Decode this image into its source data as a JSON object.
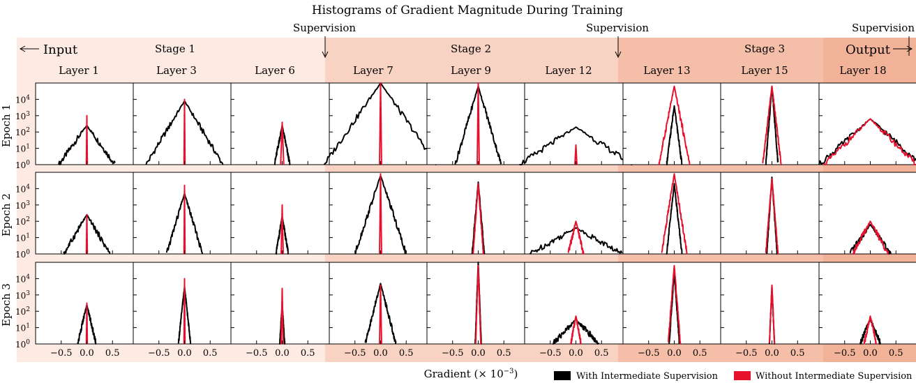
{
  "title": "Histograms of Gradient Magnitude During Training",
  "colors": {
    "stage1_bg": "#fdebe3",
    "stage2_bg": "#f8d2c2",
    "stage3_bg": "#f5bea8",
    "with_line": "#000000",
    "without_line": "#e8112d"
  },
  "labels": {
    "input": "Input",
    "output": "Output",
    "supervision": "Supervision",
    "xlabel": "Gradient (× 10",
    "xlabel_exp": "−3",
    "xlabel_close": ")"
  },
  "stages": [
    "Stage 1",
    "Stage 2",
    "Stage 3"
  ],
  "layers": [
    "Layer 1",
    "Layer 3",
    "Layer 6",
    "Layer 7",
    "Layer 9",
    "Layer 12",
    "Layer 13",
    "Layer 15",
    "Layer 18"
  ],
  "epochs": [
    "Epoch 1",
    "Epoch 2",
    "Epoch 3"
  ],
  "legend": [
    {
      "label": "With Intermediate Supervision",
      "color": "#000000"
    },
    {
      "label": "Without Intermediate Supervision",
      "color": "#e8112d"
    }
  ],
  "chart_data": {
    "type": "line",
    "xticks": [
      "−0.5",
      "0.0",
      "0.5"
    ],
    "ytick_base": "10",
    "ytick_exponents": [
      "0",
      "1",
      "2",
      "3",
      "4"
    ],
    "xlim": [
      -1.0,
      1.0
    ],
    "ylim_log10": [
      0,
      5
    ],
    "yscale": "log",
    "series_names": [
      "With Intermediate Supervision",
      "Without Intermediate Supervision"
    ],
    "note_values": "each panel: series peak (log10 count) and half-width (gradient ×10^-3) per [epoch][layer]",
    "with": [
      [
        [
          2.4,
          0.55
        ],
        [
          3.9,
          0.75
        ],
        [
          2.4,
          0.15
        ],
        [
          5.0,
          1.1
        ],
        [
          4.8,
          0.45
        ],
        [
          2.3,
          1.1
        ],
        [
          3.6,
          0.15
        ],
        [
          4.8,
          0.12
        ],
        [
          2.8,
          1.0
        ]
      ],
      [
        [
          2.4,
          0.45
        ],
        [
          3.7,
          0.35
        ],
        [
          2.3,
          0.12
        ],
        [
          4.8,
          0.5
        ],
        [
          4.4,
          0.12
        ],
        [
          1.6,
          0.9
        ],
        [
          4.3,
          0.15
        ],
        [
          4.7,
          0.1
        ],
        [
          1.8,
          0.4
        ]
      ],
      [
        [
          2.4,
          0.18
        ],
        [
          3.5,
          0.12
        ],
        [
          2.4,
          0.05
        ],
        [
          3.7,
          0.3
        ],
        [
          5.0,
          0.06
        ],
        [
          1.5,
          0.45
        ],
        [
          4.4,
          0.1
        ],
        [
          3.5,
          0.05
        ],
        [
          1.5,
          0.2
        ]
      ]
    ],
    "without": [
      [
        [
          3.0,
          0.01
        ],
        [
          4.0,
          0.01
        ],
        [
          2.6,
          0.03
        ],
        [
          5.0,
          0.02
        ],
        [
          5.0,
          0.02
        ],
        [
          1.2,
          0.02
        ],
        [
          4.8,
          0.3
        ],
        [
          4.8,
          0.18
        ],
        [
          2.8,
          0.9
        ]
      ],
      [
        [
          2.4,
          0.01
        ],
        [
          4.2,
          0.01
        ],
        [
          3.0,
          0.02
        ],
        [
          4.9,
          0.02
        ],
        [
          4.3,
          0.1
        ],
        [
          2.0,
          0.15
        ],
        [
          4.9,
          0.25
        ],
        [
          4.6,
          0.12
        ],
        [
          2.0,
          0.35
        ]
      ],
      [
        [
          2.5,
          0.01
        ],
        [
          4.0,
          0.01
        ],
        [
          3.4,
          0.02
        ],
        [
          3.6,
          0.02
        ],
        [
          4.8,
          0.05
        ],
        [
          1.7,
          0.1
        ],
        [
          4.8,
          0.12
        ],
        [
          3.6,
          0.05
        ],
        [
          1.7,
          0.12
        ]
      ]
    ]
  }
}
